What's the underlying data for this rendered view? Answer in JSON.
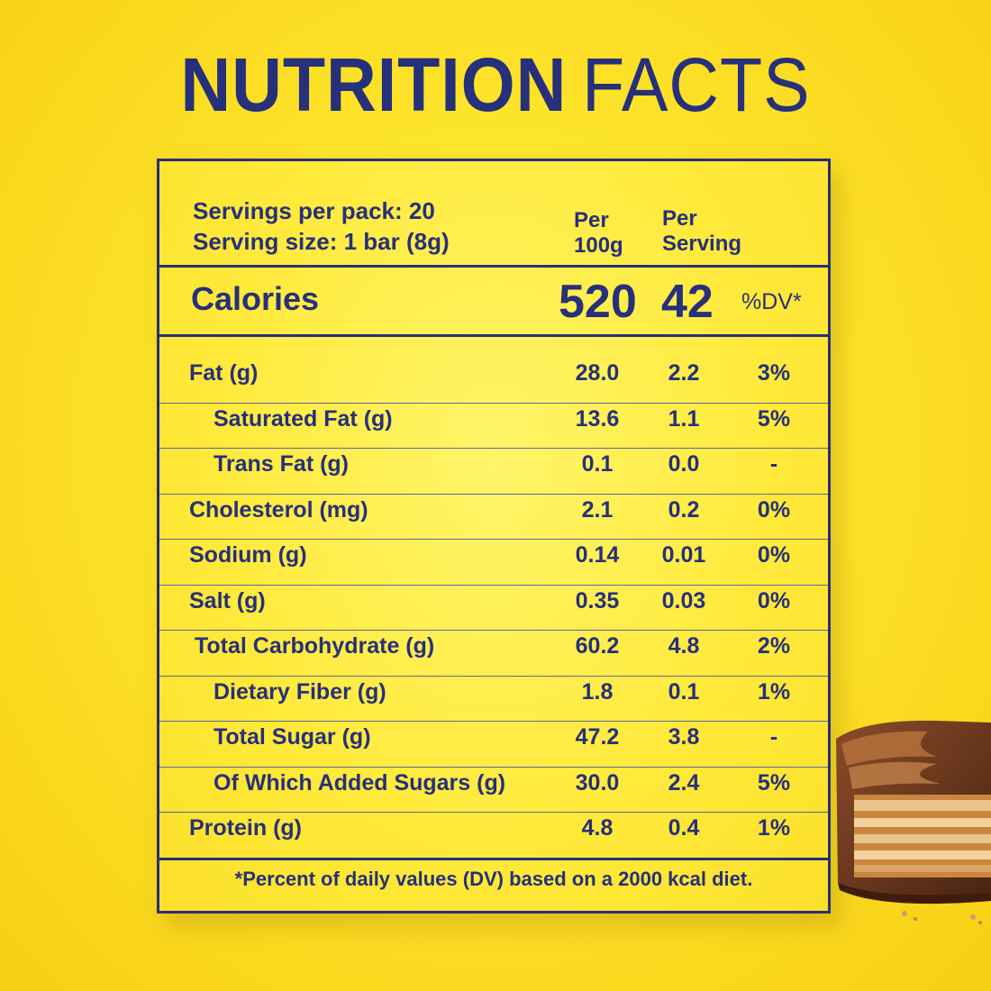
{
  "title": {
    "bold": "NUTRITION",
    "light": "FACTS"
  },
  "serving": {
    "per_pack": "Servings per pack: 20",
    "size": "Serving size: 1 bar (8g)"
  },
  "columns": {
    "per100_line1": "Per",
    "per100_line2": "100g",
    "perserv_line1": "Per",
    "perserv_line2": "Serving"
  },
  "calories": {
    "label": "Calories",
    "per100": "520",
    "perserv": "42",
    "dv_header": "%DV*"
  },
  "rows": [
    {
      "label": "Fat (g)",
      "per100": "28.0",
      "perserv": "2.2",
      "dv": "3%"
    },
    {
      "label": "Saturated Fat (g)",
      "per100": "13.6",
      "perserv": "1.1",
      "dv": "5%"
    },
    {
      "label": "Trans Fat (g)",
      "per100": "0.1",
      "perserv": "0.0",
      "dv": "-"
    },
    {
      "label": "Cholesterol (mg)",
      "per100": "2.1",
      "perserv": "0.2",
      "dv": "0%"
    },
    {
      "label": "Sodium (g)",
      "per100": "0.14",
      "perserv": "0.01",
      "dv": "0%"
    },
    {
      "label": "Salt (g)",
      "per100": "0.35",
      "perserv": "0.03",
      "dv": "0%"
    },
    {
      "label": "Total Carbohydrate (g)",
      "per100": "60.2",
      "perserv": "4.8",
      "dv": "2%"
    },
    {
      "label": "Dietary Fiber (g)",
      "per100": "1.8",
      "perserv": "0.1",
      "dv": "1%"
    },
    {
      "label": "Total Sugar (g)",
      "per100": "47.2",
      "perserv": "3.8",
      "dv": "-"
    },
    {
      "label": "Of Which Added Sugars (g)",
      "per100": "30.0",
      "perserv": "2.4",
      "dv": "5%"
    },
    {
      "label": "Protein (g)",
      "per100": "4.8",
      "perserv": "0.4",
      "dv": "1%"
    }
  ],
  "footnote": "*Percent of daily values (DV) based on a 2000 kcal diet.",
  "colors": {
    "navy": "#27307a",
    "yellow": "#fde32a"
  }
}
